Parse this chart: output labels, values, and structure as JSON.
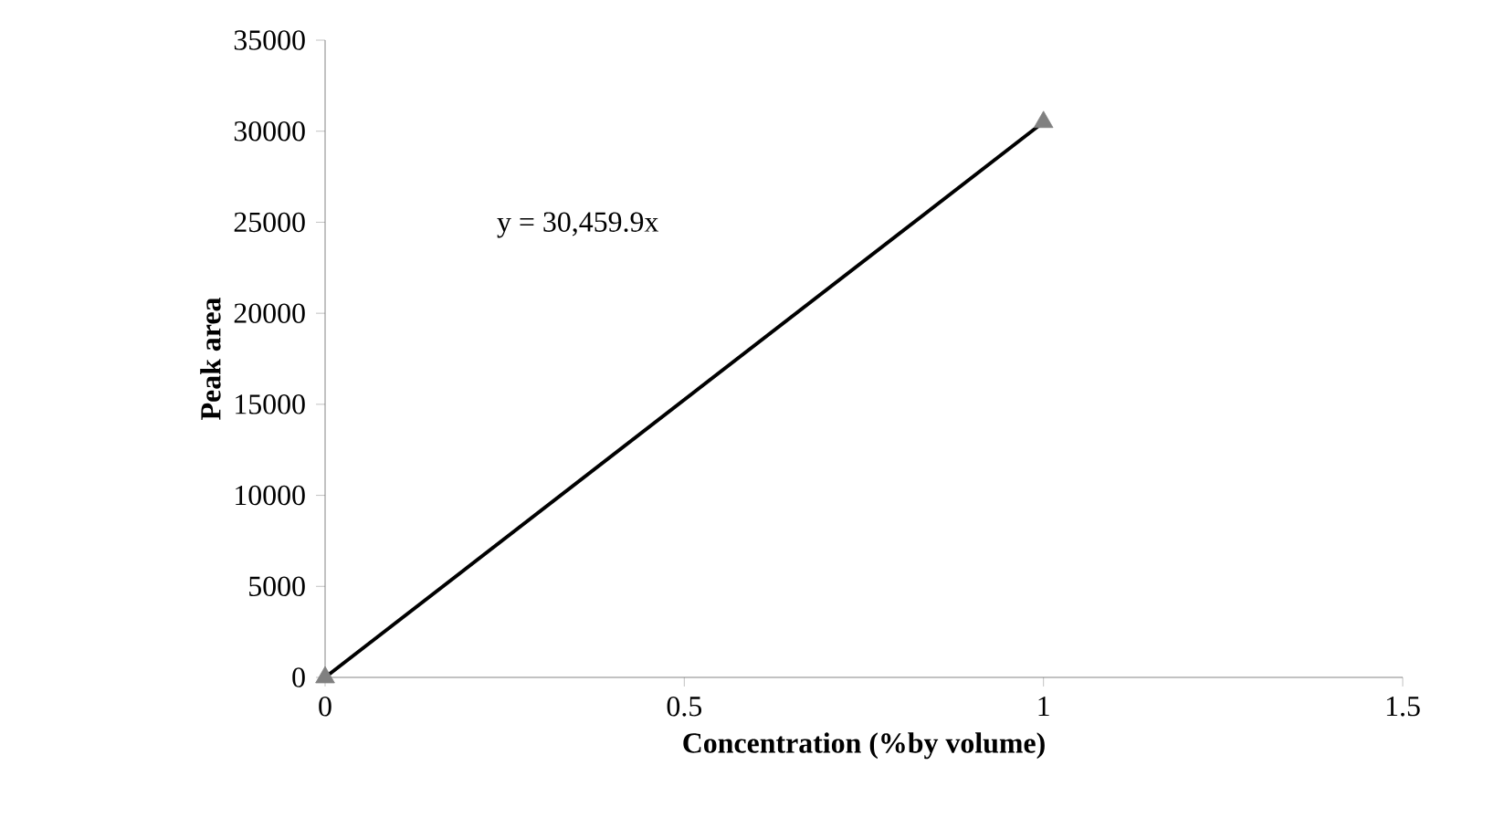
{
  "chart_data": {
    "type": "scatter",
    "xlabel": "Concentration (%by volume)",
    "ylabel": "Peak area",
    "x": [
      0,
      1
    ],
    "series": [
      {
        "color": "#808080",
        "marker": "triangle",
        "values": [
          0,
          30500
        ]
      },
      {
        "type": "line",
        "color": "#000000",
        "marker": "none",
        "line_style": "solid",
        "values": [
          0,
          30500
        ]
      }
    ],
    "annotations": [
      "y = 30,459.9x"
    ],
    "xlim": [
      0,
      1.5
    ],
    "xticks": [
      0,
      0.5,
      1,
      1.5
    ],
    "ylim": [
      0,
      35000
    ],
    "yticks": [
      0,
      5000,
      10000,
      15000,
      20000,
      25000,
      30000,
      35000
    ],
    "grid": false
  }
}
